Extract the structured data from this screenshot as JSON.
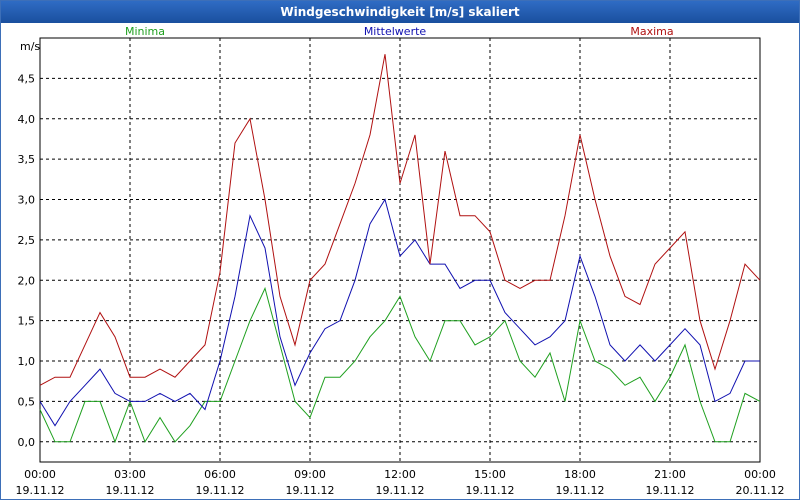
{
  "window": {
    "title": "Windgeschwindigkeit [m/s] skaliert"
  },
  "chart_data": {
    "type": "line",
    "title": "Windgeschwindigkeit [m/s] skaliert",
    "ylabel": "m/s",
    "xlabel": "",
    "ylim": [
      -0.25,
      5.0
    ],
    "xlim": [
      0,
      24
    ],
    "y_ticks": [
      {
        "value": 0.0,
        "label": "0,0"
      },
      {
        "value": 0.5,
        "label": "0,5"
      },
      {
        "value": 1.0,
        "label": "1,0"
      },
      {
        "value": 1.5,
        "label": "1,5"
      },
      {
        "value": 2.0,
        "label": "2,0"
      },
      {
        "value": 2.5,
        "label": "2,5"
      },
      {
        "value": 3.0,
        "label": "3,0"
      },
      {
        "value": 3.5,
        "label": "3,5"
      },
      {
        "value": 4.0,
        "label": "4,0"
      },
      {
        "value": 4.5,
        "label": "4,5"
      }
    ],
    "x_ticks": [
      {
        "value": 0,
        "time": "00:00",
        "date": "19.11.12"
      },
      {
        "value": 3,
        "time": "03:00",
        "date": "19.11.12"
      },
      {
        "value": 6,
        "time": "06:00",
        "date": "19.11.12"
      },
      {
        "value": 9,
        "time": "09:00",
        "date": "19.11.12"
      },
      {
        "value": 12,
        "time": "12:00",
        "date": "19.11.12"
      },
      {
        "value": 15,
        "time": "15:00",
        "date": "19.11.12"
      },
      {
        "value": 18,
        "time": "18:00",
        "date": "19.11.12"
      },
      {
        "value": 21,
        "time": "21:00",
        "date": "19.11.12"
      },
      {
        "value": 24,
        "time": "00:00",
        "date": "20.11.12"
      }
    ],
    "grid": true,
    "series": [
      {
        "name": "Minima",
        "color": "#1fa01f",
        "x": [
          0,
          0.5,
          1,
          1.5,
          2,
          2.5,
          3,
          3.5,
          4,
          4.5,
          5,
          5.5,
          6,
          6.5,
          7,
          7.5,
          8,
          8.5,
          9,
          9.5,
          10,
          10.5,
          11,
          11.5,
          12,
          12.5,
          13,
          13.5,
          14,
          14.5,
          15,
          15.5,
          16,
          16.5,
          17,
          17.5,
          18,
          18.5,
          19,
          19.5,
          20,
          20.5,
          21,
          21.5,
          22,
          22.5,
          23,
          23.5,
          24
        ],
        "values": [
          0.4,
          0.0,
          0.0,
          0.5,
          0.5,
          0.0,
          0.5,
          0.0,
          0.3,
          0.0,
          0.2,
          0.5,
          0.5,
          1.0,
          1.5,
          1.9,
          1.2,
          0.5,
          0.3,
          0.8,
          0.8,
          1.0,
          1.3,
          1.5,
          1.8,
          1.3,
          1.0,
          1.5,
          1.5,
          1.2,
          1.3,
          1.5,
          1.0,
          0.8,
          1.1,
          0.5,
          1.5,
          1.0,
          0.9,
          0.7,
          0.8,
          0.5,
          0.8,
          1.2,
          0.5,
          0.0,
          0.0,
          0.6,
          0.5
        ]
      },
      {
        "name": "Mittelwerte",
        "color": "#1010b0",
        "x": [
          0,
          0.5,
          1,
          1.5,
          2,
          2.5,
          3,
          3.5,
          4,
          4.5,
          5,
          5.5,
          6,
          6.5,
          7,
          7.5,
          8,
          8.5,
          9,
          9.5,
          10,
          10.5,
          11,
          11.5,
          12,
          12.5,
          13,
          13.5,
          14,
          14.5,
          15,
          15.5,
          16,
          16.5,
          17,
          17.5,
          18,
          18.5,
          19,
          19.5,
          20,
          20.5,
          21,
          21.5,
          22,
          22.5,
          23,
          23.5,
          24
        ],
        "values": [
          0.5,
          0.2,
          0.5,
          0.7,
          0.9,
          0.6,
          0.5,
          0.5,
          0.6,
          0.5,
          0.6,
          0.4,
          1.0,
          1.8,
          2.8,
          2.4,
          1.3,
          0.7,
          1.1,
          1.4,
          1.5,
          2.0,
          2.7,
          3.0,
          2.3,
          2.5,
          2.2,
          2.2,
          1.9,
          2.0,
          2.0,
          1.6,
          1.4,
          1.2,
          1.3,
          1.5,
          2.3,
          1.8,
          1.2,
          1.0,
          1.2,
          1.0,
          1.2,
          1.4,
          1.2,
          0.5,
          0.6,
          1.0,
          1.0
        ]
      },
      {
        "name": "Maxima",
        "color": "#b01010",
        "x": [
          0,
          0.5,
          1,
          1.5,
          2,
          2.5,
          3,
          3.5,
          4,
          4.5,
          5,
          5.5,
          6,
          6.5,
          7,
          7.5,
          8,
          8.5,
          9,
          9.5,
          10,
          10.5,
          11,
          11.5,
          12,
          12.5,
          13,
          13.5,
          14,
          14.5,
          15,
          15.5,
          16,
          16.5,
          17,
          17.5,
          18,
          18.5,
          19,
          19.5,
          20,
          20.5,
          21,
          21.5,
          22,
          22.5,
          23,
          23.5,
          24
        ],
        "values": [
          0.7,
          0.8,
          0.8,
          1.2,
          1.6,
          1.3,
          0.8,
          0.8,
          0.9,
          0.8,
          1.0,
          1.2,
          2.1,
          3.7,
          4.0,
          3.0,
          1.8,
          1.2,
          2.0,
          2.2,
          2.7,
          3.2,
          3.8,
          4.8,
          3.2,
          3.8,
          2.2,
          3.6,
          2.8,
          2.8,
          2.6,
          2.0,
          1.9,
          2.0,
          2.0,
          2.8,
          3.8,
          3.0,
          2.3,
          1.8,
          1.7,
          2.2,
          2.4,
          2.6,
          1.5,
          0.9,
          1.5,
          2.2,
          2.0
        ]
      }
    ]
  }
}
